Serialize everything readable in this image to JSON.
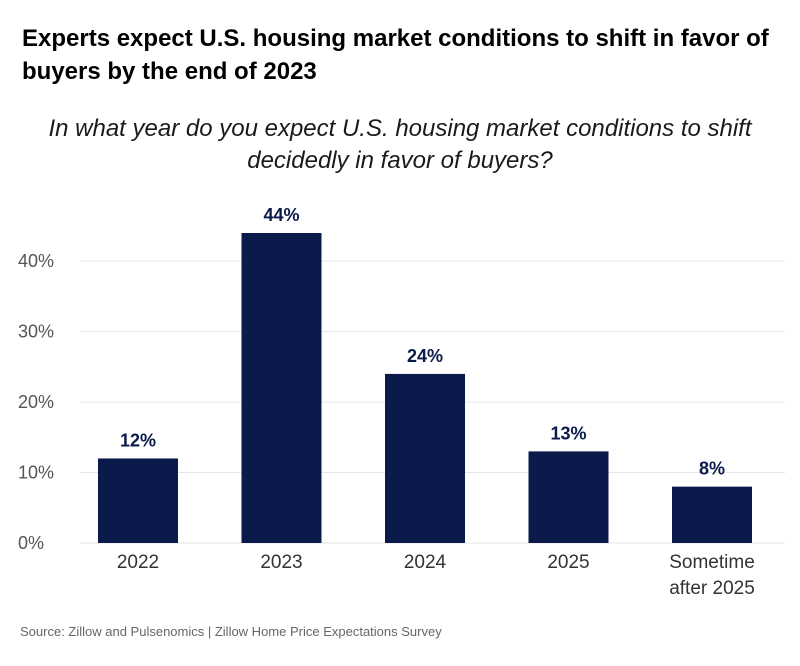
{
  "title": "Experts expect U.S. housing market conditions to shift in favor of buyers by the end of 2023",
  "subtitle": "In what year do you expect U.S. housing market conditions to shift decidedly in favor of buyers?",
  "source": "Source: Zillow and Pulsenomics | Zillow Home Price Expectations Survey",
  "colors": {
    "bar": "#0b1a4a",
    "grid": "#e6e6e6"
  },
  "chart_data": {
    "type": "bar",
    "title": "Experts expect U.S. housing market conditions to shift in favor of buyers by the end of 2023",
    "subtitle": "In what year do you expect U.S. housing market conditions to shift decidedly in favor of buyers?",
    "categories": [
      "2022",
      "2023",
      "2024",
      "2025",
      "Sometime after 2025"
    ],
    "category_lines": [
      [
        "2022"
      ],
      [
        "2023"
      ],
      [
        "2024"
      ],
      [
        "2025"
      ],
      [
        "Sometime",
        "after 2025"
      ]
    ],
    "values": [
      12,
      44,
      24,
      13,
      8
    ],
    "value_labels": [
      "12%",
      "44%",
      "24%",
      "13%",
      "8%"
    ],
    "yticks": [
      0,
      10,
      20,
      30,
      40
    ],
    "ytick_labels": [
      "0%",
      "10%",
      "20%",
      "30%",
      "40%"
    ],
    "ylim": [
      0,
      44
    ],
    "grid": true,
    "legend": "none"
  }
}
